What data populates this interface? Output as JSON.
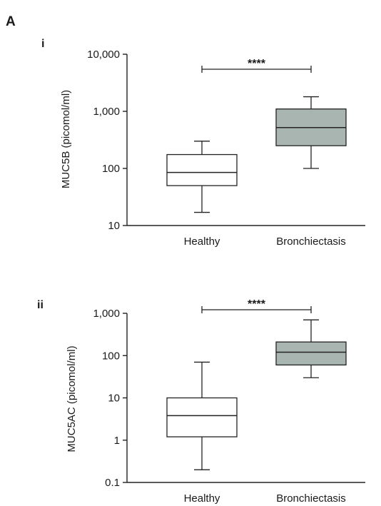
{
  "figure_label": "A",
  "colors": {
    "healthy_fill": "#ffffff",
    "bronchiectasis_fill": "#a9b5b1",
    "line": "#222222"
  },
  "chart_data": [
    {
      "type": "box",
      "panel_label": "i",
      "ylabel": "MUC5B (picomol/ml)",
      "yscale": "log",
      "ylim": [
        10,
        10000
      ],
      "yticks": [
        10,
        100,
        1000,
        10000
      ],
      "ytick_labels": [
        "10",
        "100",
        "1,000",
        "10,000"
      ],
      "categories": [
        "Healthy",
        "Bronchiectasis"
      ],
      "boxes": [
        {
          "min": 17,
          "q1": 50,
          "median": 85,
          "q3": 175,
          "max": 300
        },
        {
          "min": 100,
          "q1": 250,
          "median": 520,
          "q3": 1100,
          "max": 1800
        }
      ],
      "significance": "****"
    },
    {
      "type": "box",
      "panel_label": "ii",
      "ylabel": "MUC5AC (picomol/ml)",
      "yscale": "log",
      "ylim": [
        0.1,
        1000
      ],
      "yticks": [
        0.1,
        1,
        10,
        100,
        1000
      ],
      "ytick_labels": [
        "0.1",
        "1",
        "10",
        "100",
        "1,000"
      ],
      "categories": [
        "Healthy",
        "Bronchiectasis"
      ],
      "boxes": [
        {
          "min": 0.2,
          "q1": 1.2,
          "median": 3.8,
          "q3": 10,
          "max": 70
        },
        {
          "min": 30,
          "q1": 60,
          "median": 120,
          "q3": 210,
          "max": 700
        }
      ],
      "significance": "****"
    }
  ]
}
